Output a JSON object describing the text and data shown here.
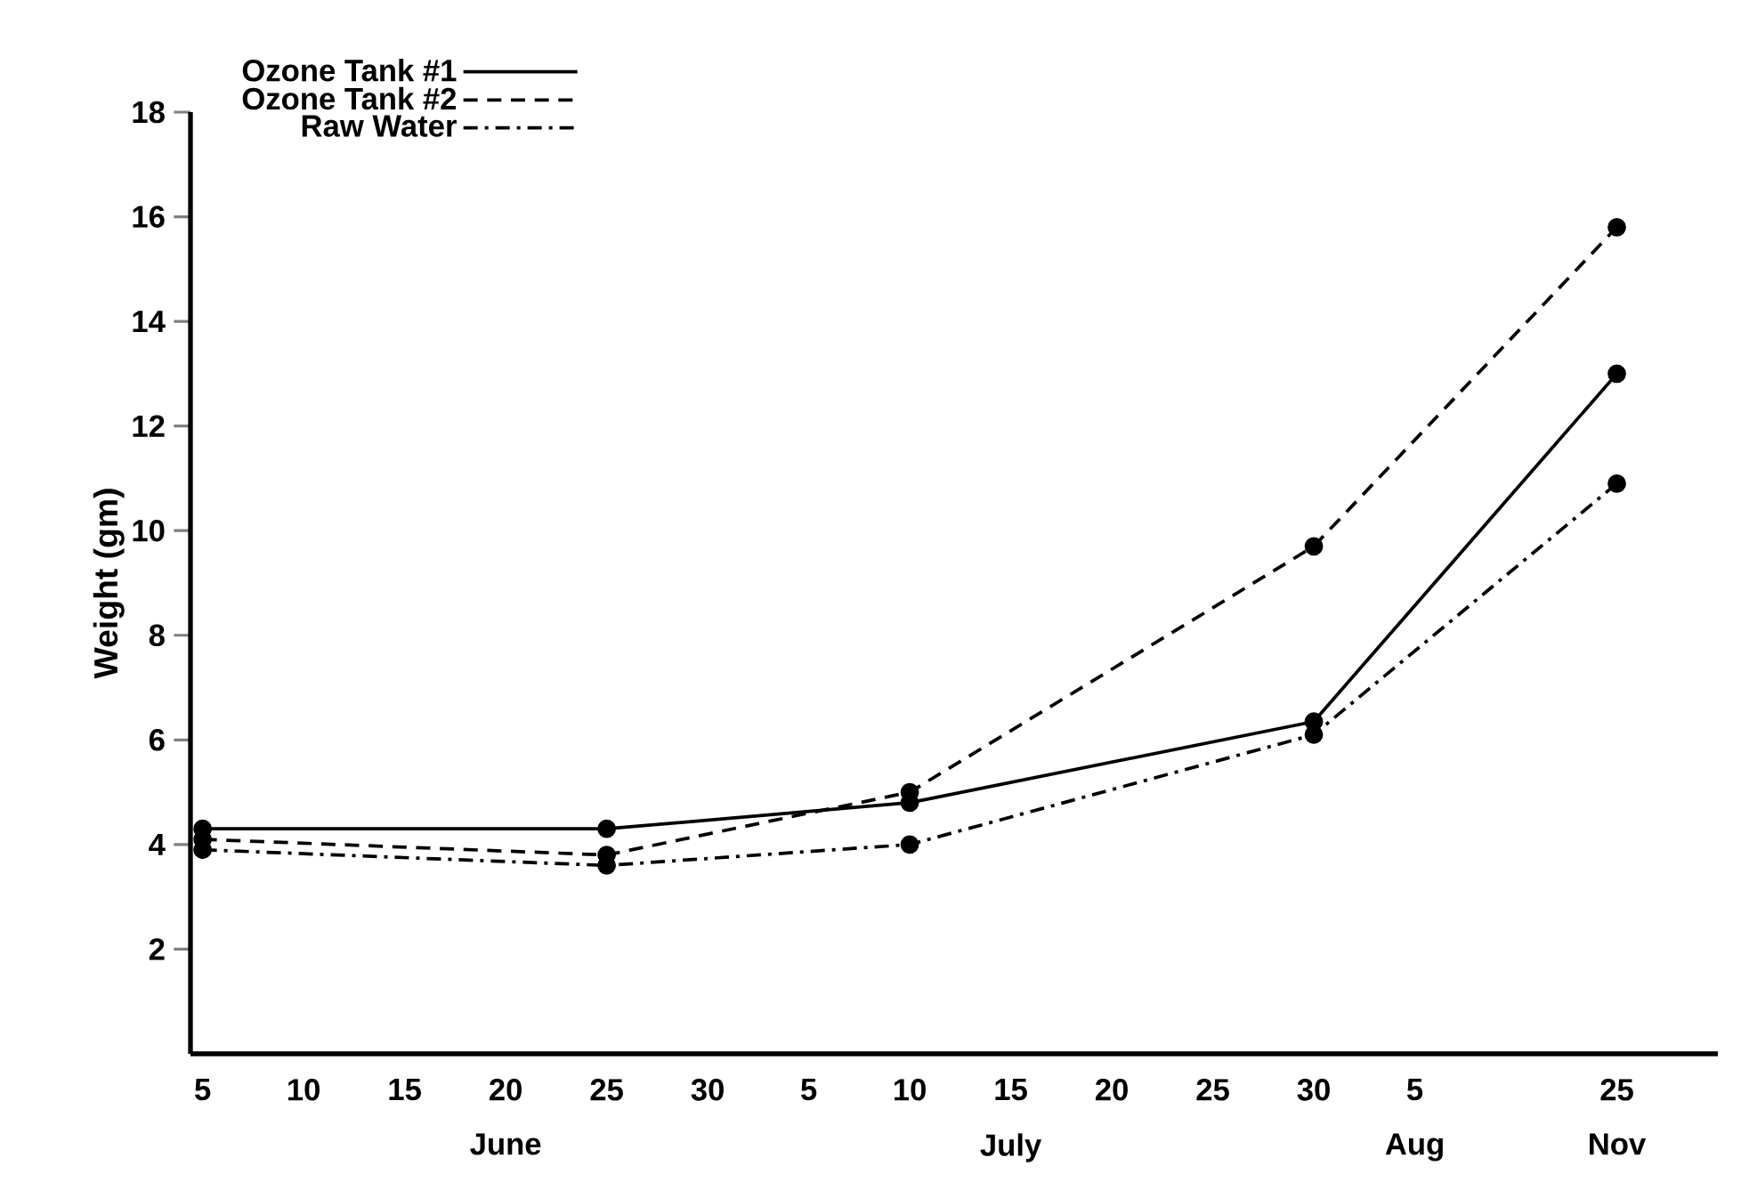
{
  "chart_data": {
    "type": "line",
    "ylabel": "Weight (gm)",
    "categories": [
      "5",
      "10",
      "15",
      "20",
      "25",
      "30",
      "5",
      "10",
      "15",
      "20",
      "25",
      "30",
      "5",
      null,
      "25"
    ],
    "ylim": [
      0,
      18
    ],
    "yticks": [
      2,
      4,
      6,
      8,
      10,
      12,
      14,
      16,
      18
    ],
    "annotations": [
      "June",
      "July",
      "Aug",
      "Nov"
    ],
    "marker": "circle",
    "legend": "top left",
    "series": [
      {
        "name": "Ozone Tank #1",
        "color": "#000000",
        "line_style": "solid",
        "values": [
          4.3,
          null,
          null,
          null,
          4.3,
          null,
          null,
          4.8,
          null,
          null,
          null,
          6.35,
          null,
          null,
          13.0
        ]
      },
      {
        "name": "Ozone Tank #2",
        "color": "#000000",
        "line_style": "dashed",
        "values": [
          4.1,
          null,
          null,
          null,
          3.8,
          null,
          null,
          5.0,
          null,
          null,
          null,
          9.7,
          null,
          null,
          15.8
        ]
      },
      {
        "name": "Raw Water",
        "color": "#000000",
        "line_style": "dashdot",
        "values": [
          3.9,
          null,
          null,
          null,
          3.6,
          null,
          null,
          4.0,
          null,
          null,
          null,
          6.1,
          null,
          null,
          10.9
        ]
      }
    ]
  }
}
